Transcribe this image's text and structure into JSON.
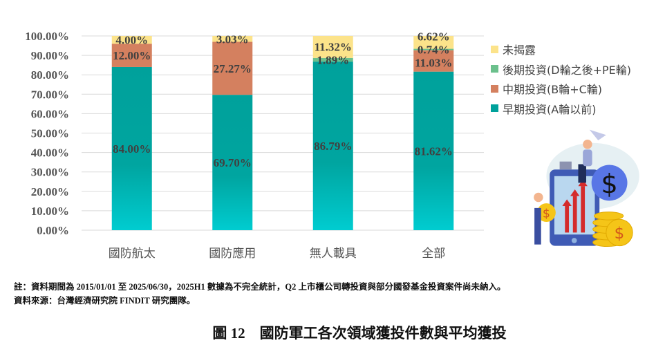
{
  "chart_data": {
    "type": "bar",
    "stacked": true,
    "categories": [
      "國防航太",
      "國防應用",
      "無人載具",
      "全部"
    ],
    "series": [
      {
        "name": "早期投資(A輪以前)",
        "color": "#00A19B",
        "values": [
          84.0,
          69.7,
          86.79,
          81.62
        ],
        "labels": [
          "84.00%",
          "69.70%",
          "86.79%",
          "81.62%"
        ]
      },
      {
        "name": "中期投資(B輪+C輪)",
        "color": "#D4805F",
        "values": [
          12.0,
          27.27,
          0,
          11.03
        ],
        "labels": [
          "12.00%",
          "27.27%",
          "",
          "11.03%"
        ]
      },
      {
        "name": "後期投資(D輪之後+PE輪)",
        "color": "#6BC08C",
        "values": [
          0,
          0,
          1.89,
          0.74
        ],
        "labels": [
          "",
          "",
          "1.89%",
          "0.74%"
        ]
      },
      {
        "name": "未揭露",
        "color": "#FCE38A",
        "values": [
          4.0,
          3.03,
          11.32,
          6.62
        ],
        "labels": [
          "4.00%",
          "3.03%",
          "11.32%",
          "6.62%"
        ]
      }
    ],
    "ylim": [
      0,
      100
    ],
    "yticks": [
      "0.00%",
      "10.00%",
      "20.00%",
      "30.00%",
      "40.00%",
      "50.00%",
      "60.00%",
      "70.00%",
      "80.00%",
      "90.00%",
      "100.00%"
    ],
    "grid": true,
    "legend_placement": "right",
    "legend_order": [
      "未揭露",
      "後期投資(D輪之後+PE輪)",
      "中期投資(B輪+C輪)",
      "早期投資(A輪以前)"
    ]
  },
  "note": "註：資料期間為 2015/01/01 至 2025/06/30，2025H1 數據為不完全統計，Q2 上市櫃公司轉投資與部分國發基金投資案件尚未納入。",
  "source": "資料來源：台灣經濟研究院 FINDIT 研究團隊。",
  "caption": "圖 12　國防軍工各次領域獲投件數與平均獲投"
}
